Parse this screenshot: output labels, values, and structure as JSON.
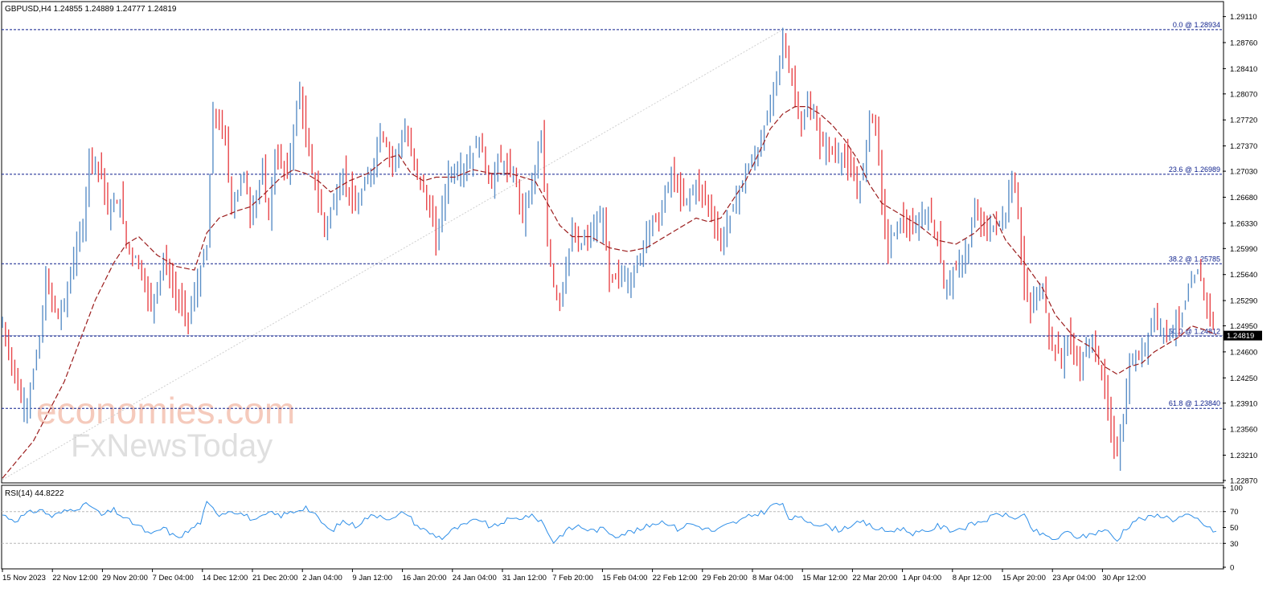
{
  "colors": {
    "bull": "#5b8fc7",
    "bear": "#e8464a",
    "ma": "#9b1c1c",
    "fib": "#0c1f8c",
    "rsi": "#2f8fe8",
    "price_tag_bg": "#000000",
    "price_tag_fg": "#ffffff",
    "watermark": "#f2b9a6"
  },
  "watermark": {
    "line1": "economies.com",
    "line2": "FxNewsToday"
  },
  "chart_data": [
    {
      "type": "candlestick",
      "title": "GBPUSD,H4  1.24855 1.24889 1.24777 1.24819",
      "current_price": 1.24819,
      "current_price_label": "1.24819",
      "ylim": [
        1.2287,
        1.2916
      ],
      "y_ticks": [
        "1.29110",
        "1.28760",
        "1.28410",
        "1.28070",
        "1.27720",
        "1.27370",
        "1.27030",
        "1.26680",
        "1.26330",
        "1.25990",
        "1.25640",
        "1.25290",
        "1.24950",
        "1.24600",
        "1.24250",
        "1.23910",
        "1.23560",
        "1.23210",
        "1.22870"
      ],
      "x_ticks": [
        "15 Nov 2023",
        "22 Nov 12:00",
        "29 Nov 20:00",
        "7 Dec 04:00",
        "14 Dec 12:00",
        "21 Dec 20:00",
        "2 Jan 04:00",
        "9 Jan 12:00",
        "16 Jan 20:00",
        "24 Jan 04:00",
        "31 Jan 12:00",
        "7 Feb 20:00",
        "15 Feb 04:00",
        "22 Feb 12:00",
        "29 Feb 20:00",
        "8 Mar 04:00",
        "15 Mar 12:00",
        "22 Mar 20:00",
        "1 Apr 04:00",
        "8 Apr 12:00",
        "15 Apr 20:00",
        "23 Apr 04:00",
        "30 Apr 12:00"
      ],
      "fib_levels": [
        {
          "label": "0.0 @ 1.28934",
          "value": 1.28934
        },
        {
          "label": "23.6 @ 1.26989",
          "value": 1.26989
        },
        {
          "label": "38.2 @ 1.25785",
          "value": 1.25785
        },
        {
          "label": "50.0 @ 1.24812",
          "value": 1.24812
        },
        {
          "label": "61.8 @ 1.23840",
          "value": 1.2384
        }
      ],
      "swing_line": {
        "from": {
          "x": "15 Nov 2023",
          "y": 1.2288
        },
        "to": {
          "x": "8 Mar 04:00",
          "y": 1.28934
        }
      },
      "price_path": [
        [
          0,
          1.2495
        ],
        [
          3,
          1.2395
        ],
        [
          4,
          1.2388
        ],
        [
          6,
          1.2475
        ],
        [
          7,
          1.2555
        ],
        [
          9,
          1.2505
        ],
        [
          10,
          1.2525
        ],
        [
          12,
          1.2605
        ],
        [
          13,
          1.2625
        ],
        [
          14,
          1.2725
        ],
        [
          16,
          1.2705
        ],
        [
          17,
          1.2645
        ],
        [
          19,
          1.2665
        ],
        [
          20,
          1.2605
        ],
        [
          22,
          1.258
        ],
        [
          24,
          1.252
        ],
        [
          26,
          1.2585
        ],
        [
          28,
          1.2535
        ],
        [
          30,
          1.2505
        ],
        [
          33,
          1.26
        ],
        [
          34,
          1.2785
        ],
        [
          36,
          1.2745
        ],
        [
          37,
          1.2655
        ],
        [
          39,
          1.27
        ],
        [
          40,
          1.2645
        ],
        [
          42,
          1.27
        ],
        [
          43,
          1.264
        ],
        [
          44,
          1.2725
        ],
        [
          46,
          1.27
        ],
        [
          48,
          1.2815
        ],
        [
          49,
          1.2745
        ],
        [
          50,
          1.2705
        ],
        [
          52,
          1.2625
        ],
        [
          55,
          1.27
        ],
        [
          57,
          1.265
        ],
        [
          60,
          1.2715
        ],
        [
          61,
          1.276
        ],
        [
          63,
          1.2715
        ],
        [
          65,
          1.2755
        ],
        [
          67,
          1.27
        ],
        [
          69,
          1.265
        ],
        [
          70,
          1.261
        ],
        [
          72,
          1.27
        ],
        [
          75,
          1.271
        ],
        [
          77,
          1.2745
        ],
        [
          79,
          1.268
        ],
        [
          80,
          1.272
        ],
        [
          83,
          1.269
        ],
        [
          84,
          1.264
        ],
        [
          86,
          1.2705
        ],
        [
          87,
          1.2745
        ],
        [
          88,
          1.261
        ],
        [
          89,
          1.255
        ],
        [
          90,
          1.253
        ],
        [
          92,
          1.262
        ],
        [
          93,
          1.26
        ],
        [
          95,
          1.262
        ],
        [
          97,
          1.264
        ],
        [
          98,
          1.2555
        ],
        [
          100,
          1.2565
        ],
        [
          101,
          1.2555
        ],
        [
          103,
          1.2585
        ],
        [
          104,
          1.263
        ],
        [
          106,
          1.264
        ],
        [
          108,
          1.27
        ],
        [
          110,
          1.266
        ],
        [
          112,
          1.2685
        ],
        [
          114,
          1.266
        ],
        [
          116,
          1.2605
        ],
        [
          118,
          1.2655
        ],
        [
          120,
          1.27
        ],
        [
          122,
          1.273
        ],
        [
          124,
          1.279
        ],
        [
          126,
          1.288
        ],
        [
          127,
          1.284
        ],
        [
          128,
          1.281
        ],
        [
          129,
          1.276
        ],
        [
          130,
          1.279
        ],
        [
          131,
          1.278
        ],
        [
          132,
          1.274
        ],
        [
          134,
          1.273
        ],
        [
          136,
          1.272
        ],
        [
          138,
          1.268
        ],
        [
          139,
          1.27
        ],
        [
          140,
          1.278
        ],
        [
          141,
          1.277
        ],
        [
          142,
          1.266
        ],
        [
          143,
          1.26
        ],
        [
          145,
          1.264
        ],
        [
          147,
          1.262
        ],
        [
          149,
          1.265
        ],
        [
          151,
          1.262
        ],
        [
          152,
          1.2545
        ],
        [
          154,
          1.257
        ],
        [
          156,
          1.26
        ],
        [
          157,
          1.265
        ],
        [
          159,
          1.262
        ],
        [
          160,
          1.263
        ],
        [
          162,
          1.264
        ],
        [
          163,
          1.27
        ],
        [
          164,
          1.265
        ],
        [
          165,
          1.2545
        ],
        [
          166,
          1.252
        ],
        [
          168,
          1.255
        ],
        [
          169,
          1.248
        ],
        [
          171,
          1.245
        ],
        [
          172,
          1.248
        ],
        [
          174,
          1.244
        ],
        [
          176,
          1.248
        ],
        [
          178,
          1.241
        ],
        [
          179,
          1.235
        ],
        [
          180,
          1.2325
        ],
        [
          181,
          1.237
        ],
        [
          182,
          1.244
        ],
        [
          184,
          1.246
        ],
        [
          186,
          1.251
        ],
        [
          188,
          1.2485
        ],
        [
          190,
          1.25
        ],
        [
          192,
          1.255
        ],
        [
          193,
          1.257
        ],
        [
          195,
          1.251
        ],
        [
          196,
          1.2482
        ]
      ],
      "ma_path": [
        [
          0,
          1.229
        ],
        [
          5,
          1.234
        ],
        [
          10,
          1.242
        ],
        [
          15,
          1.253
        ],
        [
          18,
          1.258
        ],
        [
          20,
          1.2605
        ],
        [
          22,
          1.2615
        ],
        [
          25,
          1.259
        ],
        [
          28,
          1.2575
        ],
        [
          31,
          1.257
        ],
        [
          33,
          1.262
        ],
        [
          35,
          1.264
        ],
        [
          38,
          1.265
        ],
        [
          40,
          1.2655
        ],
        [
          42,
          1.267
        ],
        [
          45,
          1.2695
        ],
        [
          47,
          1.2705
        ],
        [
          49,
          1.27
        ],
        [
          51,
          1.269
        ],
        [
          53,
          1.2675
        ],
        [
          56,
          1.269
        ],
        [
          59,
          1.27
        ],
        [
          62,
          1.272
        ],
        [
          64,
          1.2725
        ],
        [
          66,
          1.27
        ],
        [
          68,
          1.269
        ],
        [
          70,
          1.2695
        ],
        [
          73,
          1.2695
        ],
        [
          76,
          1.2705
        ],
        [
          79,
          1.27
        ],
        [
          82,
          1.27
        ],
        [
          84,
          1.2695
        ],
        [
          86,
          1.269
        ],
        [
          88,
          1.266
        ],
        [
          90,
          1.263
        ],
        [
          92,
          1.2615
        ],
        [
          95,
          1.2615
        ],
        [
          98,
          1.26
        ],
        [
          101,
          1.2595
        ],
        [
          104,
          1.26
        ],
        [
          107,
          1.2615
        ],
        [
          110,
          1.263
        ],
        [
          112,
          1.264
        ],
        [
          114,
          1.2635
        ],
        [
          116,
          1.264
        ],
        [
          118,
          1.2665
        ],
        [
          120,
          1.269
        ],
        [
          122,
          1.2725
        ],
        [
          124,
          1.276
        ],
        [
          126,
          1.278
        ],
        [
          128,
          1.279
        ],
        [
          130,
          1.279
        ],
        [
          132,
          1.278
        ],
        [
          134,
          1.2765
        ],
        [
          136,
          1.2745
        ],
        [
          138,
          1.272
        ],
        [
          140,
          1.2685
        ],
        [
          142,
          1.266
        ],
        [
          145,
          1.2645
        ],
        [
          148,
          1.263
        ],
        [
          151,
          1.261
        ],
        [
          154,
          1.2605
        ],
        [
          157,
          1.262
        ],
        [
          160,
          1.2645
        ],
        [
          162,
          1.261
        ],
        [
          165,
          1.258
        ],
        [
          168,
          1.2545
        ],
        [
          170,
          1.251
        ],
        [
          173,
          1.248
        ],
        [
          176,
          1.2465
        ],
        [
          178,
          1.244
        ],
        [
          180,
          1.243
        ],
        [
          182,
          1.244
        ],
        [
          184,
          1.2445
        ],
        [
          186,
          1.246
        ],
        [
          188,
          1.247
        ],
        [
          190,
          1.248
        ],
        [
          192,
          1.2495
        ],
        [
          194,
          1.249
        ],
        [
          196,
          1.2483
        ]
      ]
    },
    {
      "type": "line",
      "title": "RSI(14) 44.8222",
      "ylim": [
        0,
        100
      ],
      "y_ticks": [
        "100",
        "70",
        "50",
        "30",
        "0"
      ],
      "levels": [
        70,
        30
      ],
      "rsi_path": [
        [
          0,
          66
        ],
        [
          2,
          59
        ],
        [
          4,
          67
        ],
        [
          6,
          73
        ],
        [
          8,
          64
        ],
        [
          10,
          70
        ],
        [
          12,
          75
        ],
        [
          14,
          79
        ],
        [
          16,
          65
        ],
        [
          18,
          72
        ],
        [
          20,
          60
        ],
        [
          22,
          52
        ],
        [
          24,
          40
        ],
        [
          26,
          50
        ],
        [
          28,
          37
        ],
        [
          30,
          45
        ],
        [
          32,
          57
        ],
        [
          33,
          80
        ],
        [
          35,
          67
        ],
        [
          37,
          72
        ],
        [
          39,
          66
        ],
        [
          41,
          58
        ],
        [
          43,
          68
        ],
        [
          45,
          65
        ],
        [
          47,
          70
        ],
        [
          49,
          76
        ],
        [
          51,
          61
        ],
        [
          53,
          45
        ],
        [
          55,
          58
        ],
        [
          57,
          52
        ],
        [
          59,
          63
        ],
        [
          61,
          66
        ],
        [
          63,
          60
        ],
        [
          65,
          70
        ],
        [
          67,
          52
        ],
        [
          69,
          43
        ],
        [
          71,
          37
        ],
        [
          73,
          48
        ],
        [
          75,
          54
        ],
        [
          77,
          61
        ],
        [
          79,
          49
        ],
        [
          81,
          58
        ],
        [
          83,
          61
        ],
        [
          85,
          65
        ],
        [
          87,
          59
        ],
        [
          88,
          45
        ],
        [
          89,
          32
        ],
        [
          91,
          46
        ],
        [
          93,
          52
        ],
        [
          95,
          46
        ],
        [
          97,
          48
        ],
        [
          99,
          40
        ],
        [
          101,
          44
        ],
        [
          103,
          47
        ],
        [
          105,
          55
        ],
        [
          107,
          58
        ],
        [
          109,
          48
        ],
        [
          111,
          55
        ],
        [
          113,
          50
        ],
        [
          115,
          45
        ],
        [
          117,
          53
        ],
        [
          119,
          58
        ],
        [
          121,
          65
        ],
        [
          123,
          70
        ],
        [
          125,
          81
        ],
        [
          126,
          77
        ],
        [
          127,
          62
        ],
        [
          129,
          61
        ],
        [
          131,
          56
        ],
        [
          133,
          52
        ],
        [
          135,
          47
        ],
        [
          137,
          53
        ],
        [
          139,
          56
        ],
        [
          141,
          49
        ],
        [
          143,
          45
        ],
        [
          145,
          49
        ],
        [
          147,
          43
        ],
        [
          149,
          44
        ],
        [
          151,
          52
        ],
        [
          153,
          47
        ],
        [
          155,
          49
        ],
        [
          157,
          55
        ],
        [
          159,
          60
        ],
        [
          161,
          68
        ],
        [
          163,
          62
        ],
        [
          165,
          65
        ],
        [
          166,
          49
        ],
        [
          168,
          40
        ],
        [
          170,
          35
        ],
        [
          172,
          44
        ],
        [
          174,
          37
        ],
        [
          176,
          42
        ],
        [
          178,
          48
        ],
        [
          180,
          33
        ],
        [
          181,
          46
        ],
        [
          183,
          60
        ],
        [
          185,
          62
        ],
        [
          187,
          66
        ],
        [
          189,
          60
        ],
        [
          191,
          65
        ],
        [
          193,
          60
        ],
        [
          195,
          48
        ],
        [
          196,
          44.8
        ]
      ]
    }
  ]
}
